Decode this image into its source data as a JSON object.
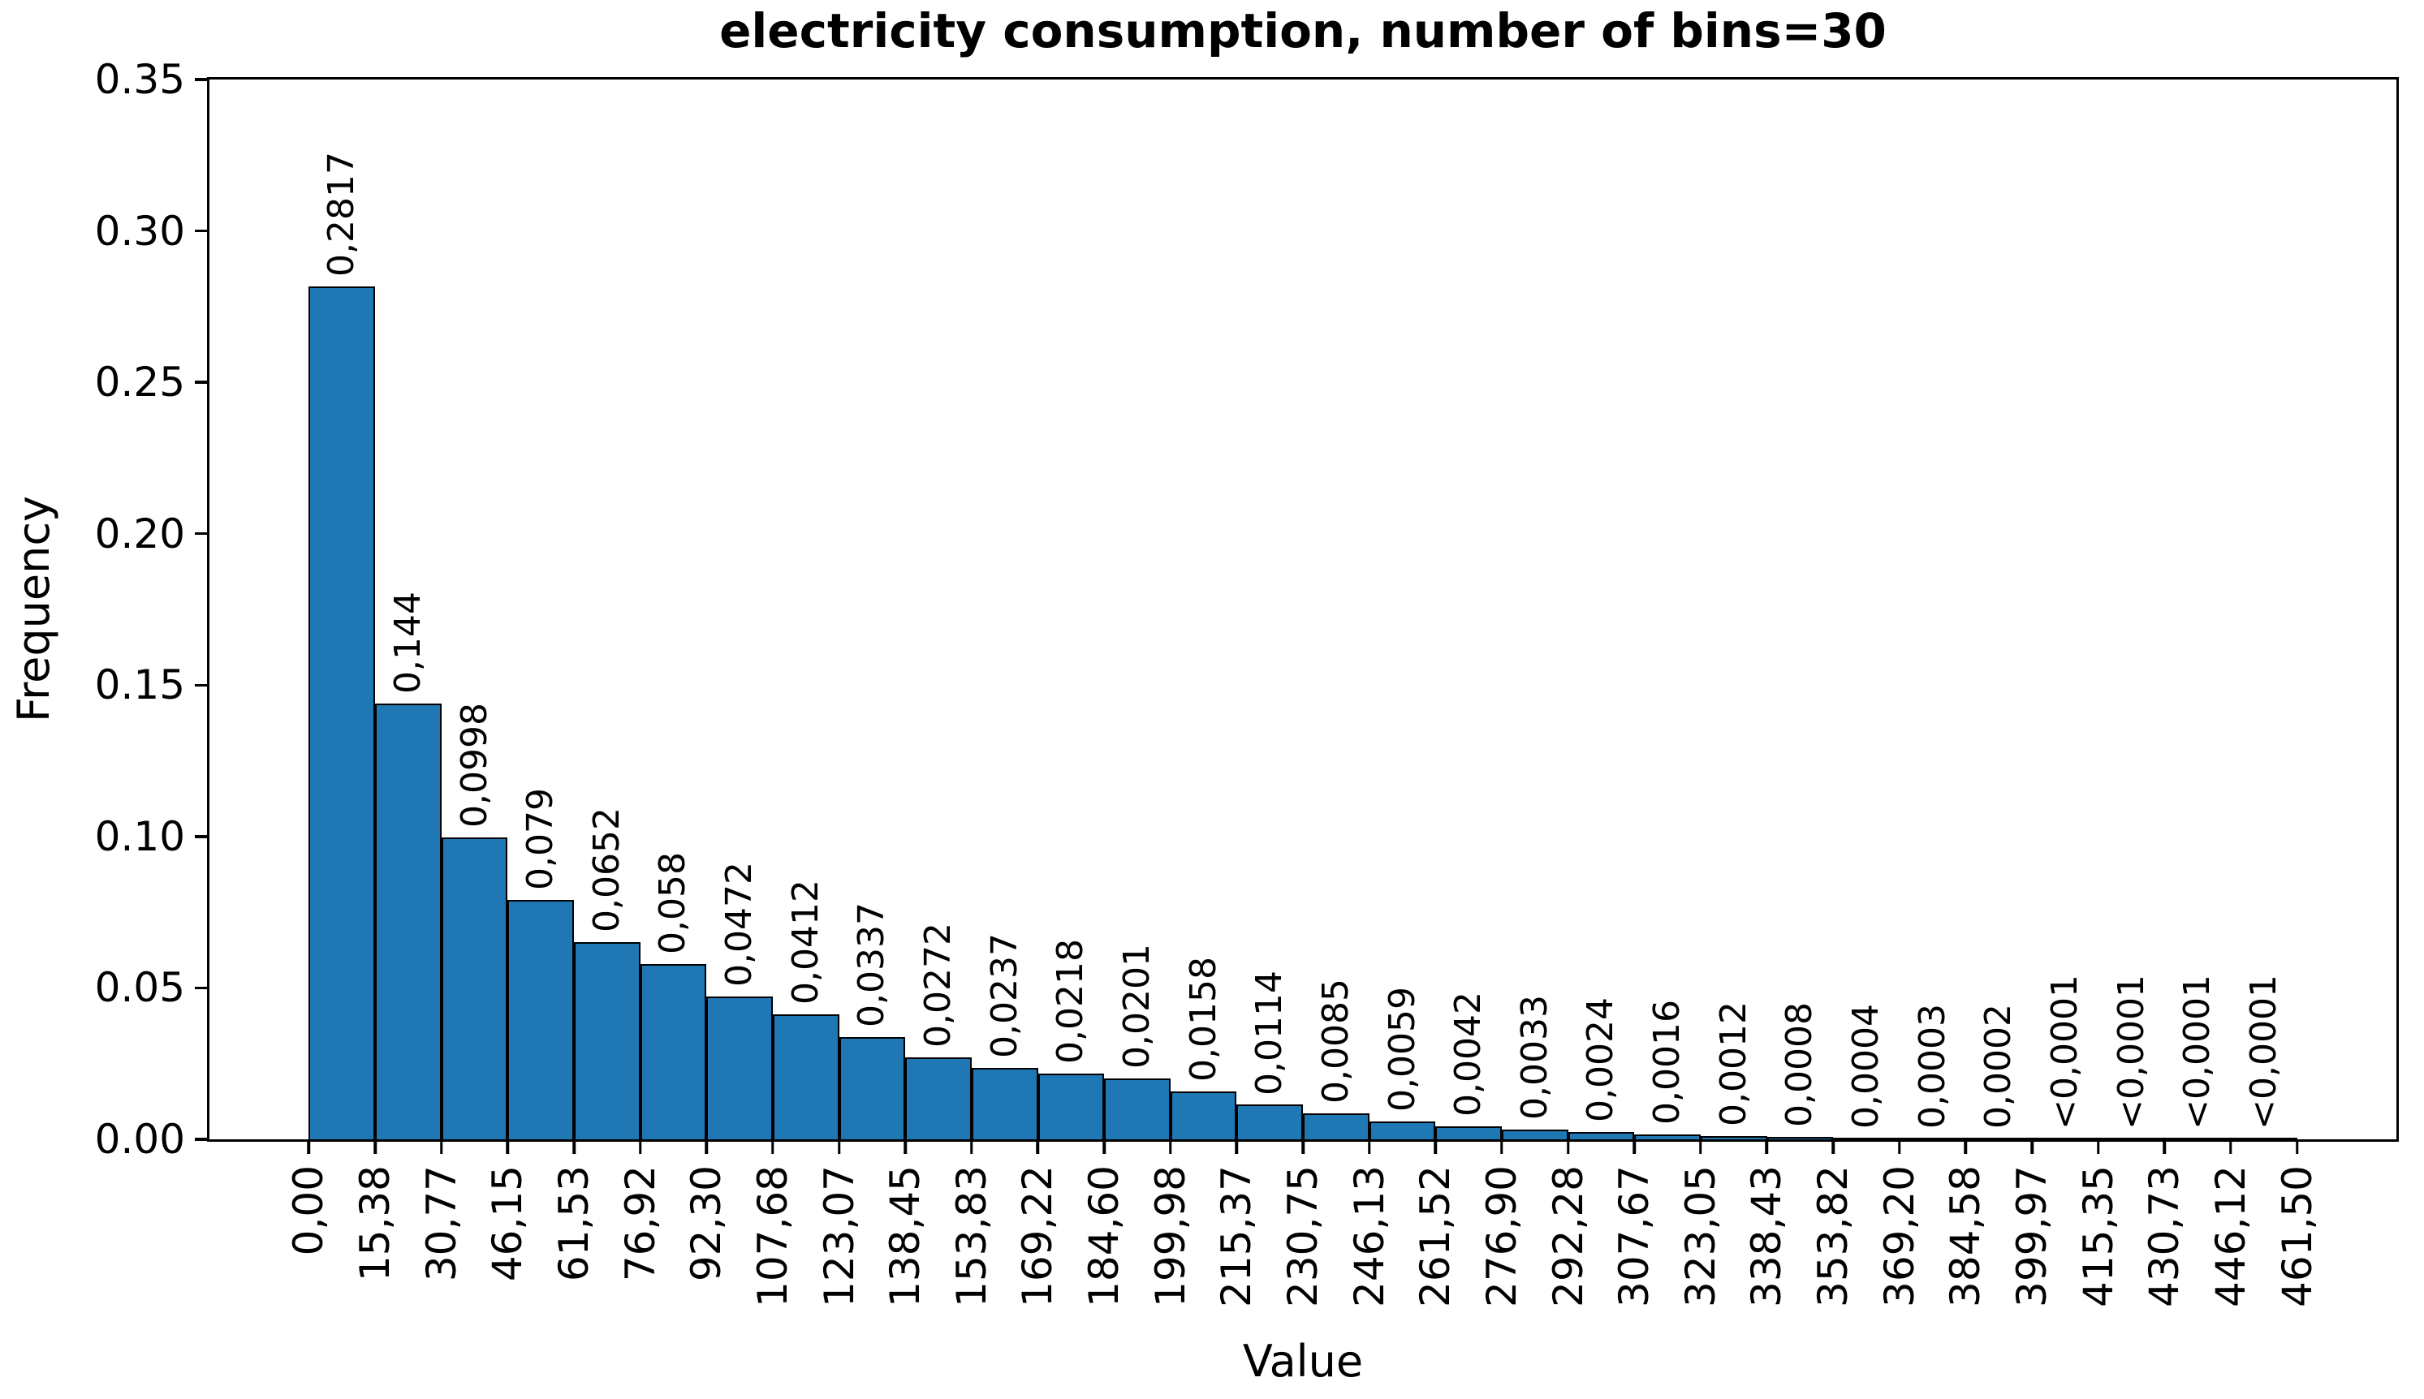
{
  "chart_data": {
    "type": "bar",
    "subtype": "histogram",
    "title": "electricity consumption, number of bins=30",
    "xlabel": "Value",
    "ylabel": "Frequency",
    "ylim": [
      0,
      0.35
    ],
    "n_bins": 30,
    "x_margin_fraction": 0.05,
    "grid": false,
    "bar_color": "#1f77b4",
    "bar_edge_color": "#000000",
    "y_tick_labels": [
      "0.00",
      "0.05",
      "0.10",
      "0.15",
      "0.20",
      "0.25",
      "0.30",
      "0.35"
    ],
    "x_tick_labels": [
      "0,00",
      "15,38",
      "30,77",
      "46,15",
      "61,53",
      "76,92",
      "92,30",
      "107,68",
      "123,07",
      "138,45",
      "153,83",
      "169,22",
      "184,60",
      "199,98",
      "215,37",
      "230,75",
      "246,13",
      "261,52",
      "276,90",
      "292,28",
      "307,67",
      "323,05",
      "338,43",
      "353,82",
      "369,20",
      "384,58",
      "399,97",
      "415,35",
      "430,73",
      "446,12",
      "461,50"
    ],
    "values": [
      0.2817,
      0.144,
      0.0998,
      0.079,
      0.0652,
      0.058,
      0.0472,
      0.0412,
      0.0337,
      0.0272,
      0.0237,
      0.0218,
      0.0201,
      0.0158,
      0.0114,
      0.0085,
      0.0059,
      0.0042,
      0.0033,
      0.0024,
      0.0016,
      0.0012,
      0.0008,
      0.0004,
      0.0003,
      0.0002,
      5e-05,
      5e-05,
      5e-05,
      5e-05
    ],
    "bar_value_labels": [
      "0,2817",
      "0,144",
      "0,0998",
      "0,079",
      "0,0652",
      "0,058",
      "0,0472",
      "0,0412",
      "0,0337",
      "0,0272",
      "0,0237",
      "0,0218",
      "0,0201",
      "0,0158",
      "0,0114",
      "0,0085",
      "0,0059",
      "0,0042",
      "0,0033",
      "0,0024",
      "0,0016",
      "0,0012",
      "0,0008",
      "0,0004",
      "0,0003",
      "0,0002",
      "<0,0001",
      "<0,0001",
      "<0,0001",
      "<0,0001"
    ]
  }
}
